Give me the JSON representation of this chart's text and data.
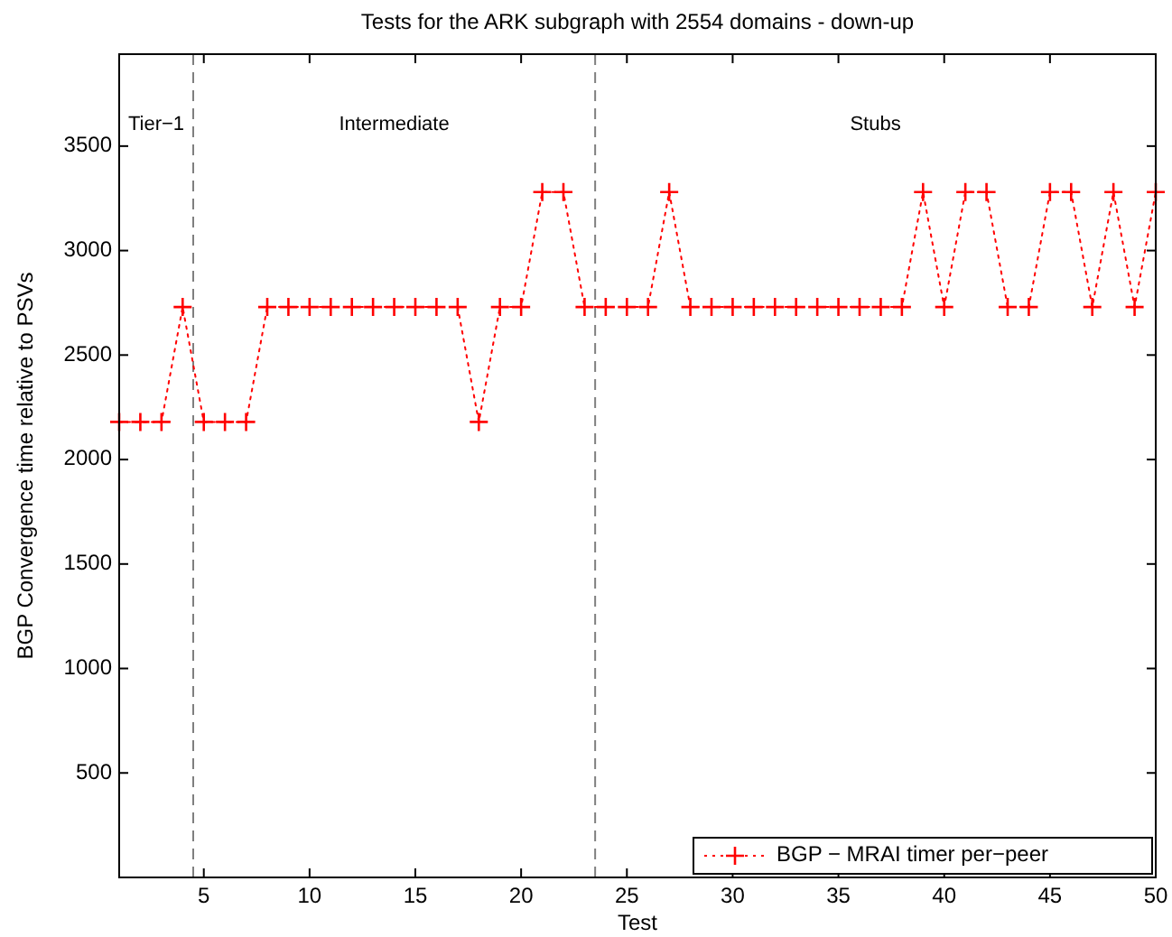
{
  "chart_data": {
    "type": "line",
    "title": "Tests for the ARK subgraph with 2554 domains - down-up",
    "xlabel": "Test",
    "ylabel": "BGP Convergence time relative to PSVs",
    "x": [
      1,
      2,
      3,
      4,
      5,
      6,
      7,
      8,
      9,
      10,
      11,
      12,
      13,
      14,
      15,
      16,
      17,
      18,
      19,
      20,
      21,
      22,
      23,
      24,
      25,
      26,
      27,
      28,
      29,
      30,
      31,
      32,
      33,
      34,
      35,
      36,
      37,
      38,
      39,
      40,
      41,
      42,
      43,
      44,
      45,
      46,
      47,
      48,
      49,
      50
    ],
    "series": [
      {
        "name": "BGP − MRAI timer per−peer",
        "color": "#ff0000",
        "values": [
          2180,
          2180,
          2180,
          2730,
          2180,
          2180,
          2180,
          2730,
          2730,
          2730,
          2730,
          2730,
          2730,
          2730,
          2730,
          2730,
          2730,
          2180,
          2730,
          2730,
          3280,
          3280,
          2730,
          2730,
          2730,
          2730,
          3280,
          2730,
          2730,
          2730,
          2730,
          2730,
          2730,
          2730,
          2730,
          2730,
          2730,
          2730,
          3280,
          2730,
          3280,
          3280,
          2730,
          2730,
          3280,
          3280,
          2730,
          3280,
          2730,
          3280
        ]
      }
    ],
    "xlim": [
      1,
      50
    ],
    "xticks": [
      5,
      10,
      15,
      20,
      25,
      30,
      35,
      40,
      45,
      50
    ],
    "ylim": [
      0,
      3940
    ],
    "yticks": [
      500,
      1000,
      1500,
      2000,
      2500,
      3000,
      3500
    ],
    "ref_lines": [
      {
        "axis": "x",
        "value": 4.5,
        "color": "#7f7f7f",
        "line_style": "dashed"
      },
      {
        "axis": "x",
        "value": 23.5,
        "color": "#7f7f7f",
        "line_style": "dashed"
      }
    ],
    "annotations": [
      "Tier−1",
      "Intermediate",
      "Stubs"
    ],
    "marker": "cross",
    "line_style": "dotted",
    "legend": "bottom right",
    "grid": false
  }
}
